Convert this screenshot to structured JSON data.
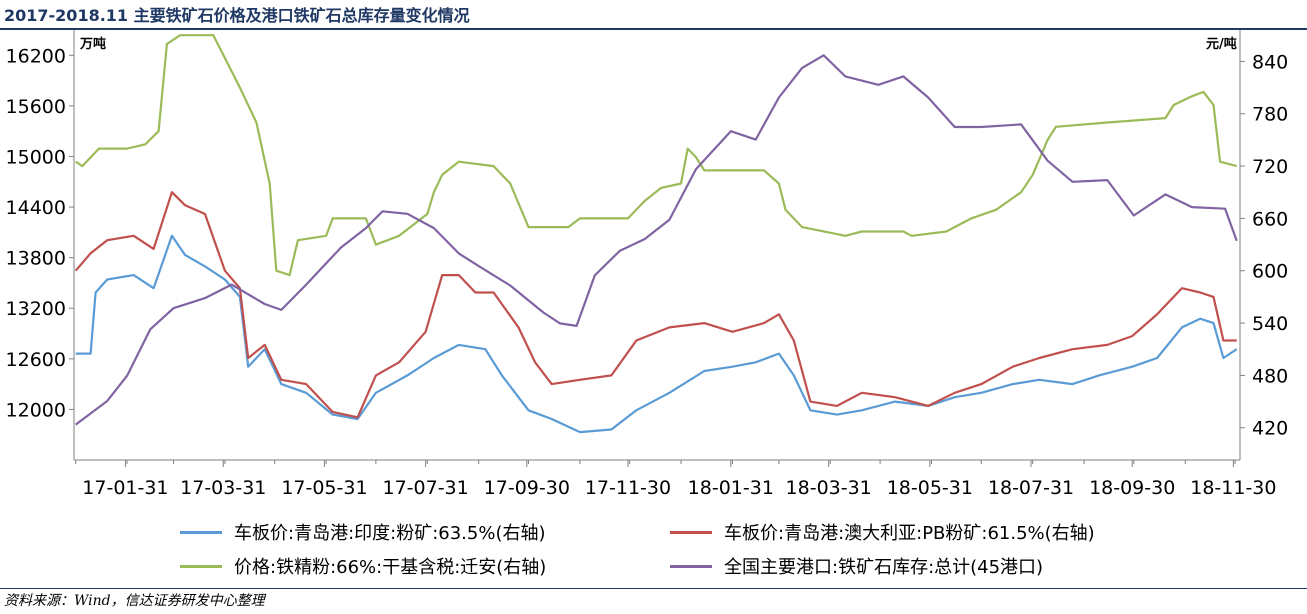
{
  "title": "2017-2018.11 主要铁矿石价格及港口铁矿石总库存量变化情况",
  "source": "资料来源：Wind，信达证券研发中心整理",
  "chart_data": {
    "type": "line",
    "left_axis": {
      "unit": "万吨",
      "ticks": [
        12000,
        12600,
        13200,
        13800,
        14400,
        15000,
        15600,
        16200
      ],
      "range": [
        11400,
        16500
      ]
    },
    "right_axis": {
      "unit": "元/吨",
      "ticks": [
        420,
        480,
        540,
        600,
        660,
        720,
        780,
        840
      ],
      "range": [
        383,
        876
      ]
    },
    "x_ticks": [
      "17-01-31",
      "17-03-31",
      "17-05-31",
      "17-07-31",
      "17-09-30",
      "17-11-30",
      "18-01-31",
      "18-03-31",
      "18-05-31",
      "18-07-31",
      "18-09-30",
      "18-11-30"
    ],
    "x_range": [
      "2016-12-31",
      "2018-12-04"
    ],
    "series": [
      {
        "name": "车板价:青岛港:印度:粉矿:63.5%(右轴)",
        "axis": "right",
        "color": "#5b9bd5",
        "points": [
          [
            "2017-01-01",
            505
          ],
          [
            "2017-01-10",
            505
          ],
          [
            "2017-01-13",
            575
          ],
          [
            "2017-01-20",
            590
          ],
          [
            "2017-02-05",
            595
          ],
          [
            "2017-02-17",
            580
          ],
          [
            "2017-02-28",
            640
          ],
          [
            "2017-03-08",
            618
          ],
          [
            "2017-03-20",
            605
          ],
          [
            "2017-04-01",
            590
          ],
          [
            "2017-04-10",
            570
          ],
          [
            "2017-04-15",
            490
          ],
          [
            "2017-04-25",
            510
          ],
          [
            "2017-05-05",
            470
          ],
          [
            "2017-05-20",
            460
          ],
          [
            "2017-06-05",
            435
          ],
          [
            "2017-06-20",
            430
          ],
          [
            "2017-07-01",
            460
          ],
          [
            "2017-07-20",
            480
          ],
          [
            "2017-08-05",
            500
          ],
          [
            "2017-08-20",
            515
          ],
          [
            "2017-09-05",
            510
          ],
          [
            "2017-09-15",
            480
          ],
          [
            "2017-10-01",
            440
          ],
          [
            "2017-10-15",
            430
          ],
          [
            "2017-11-01",
            415
          ],
          [
            "2017-11-20",
            418
          ],
          [
            "2017-12-05",
            440
          ],
          [
            "2017-12-25",
            460
          ],
          [
            "2018-01-15",
            485
          ],
          [
            "2018-02-01",
            490
          ],
          [
            "2018-02-15",
            495
          ],
          [
            "2018-03-01",
            505
          ],
          [
            "2018-03-10",
            480
          ],
          [
            "2018-03-20",
            440
          ],
          [
            "2018-04-05",
            435
          ],
          [
            "2018-04-20",
            440
          ],
          [
            "2018-05-10",
            450
          ],
          [
            "2018-05-30",
            445
          ],
          [
            "2018-06-15",
            455
          ],
          [
            "2018-07-01",
            460
          ],
          [
            "2018-07-20",
            470
          ],
          [
            "2018-08-05",
            475
          ],
          [
            "2018-08-25",
            470
          ],
          [
            "2018-09-10",
            480
          ],
          [
            "2018-09-30",
            490
          ],
          [
            "2018-10-15",
            500
          ],
          [
            "2018-10-30",
            535
          ],
          [
            "2018-11-10",
            545
          ],
          [
            "2018-11-18",
            540
          ],
          [
            "2018-11-24",
            500
          ],
          [
            "2018-12-02",
            510
          ]
        ]
      },
      {
        "name": "车板价:青岛港:澳大利亚:PB粉矿:61.5%(右轴)",
        "axis": "right",
        "color": "#c0504d",
        "points": [
          [
            "2017-01-01",
            600
          ],
          [
            "2017-01-10",
            620
          ],
          [
            "2017-01-20",
            635
          ],
          [
            "2017-02-05",
            640
          ],
          [
            "2017-02-17",
            625
          ],
          [
            "2017-02-28",
            690
          ],
          [
            "2017-03-08",
            675
          ],
          [
            "2017-03-20",
            665
          ],
          [
            "2017-04-01",
            600
          ],
          [
            "2017-04-10",
            580
          ],
          [
            "2017-04-15",
            500
          ],
          [
            "2017-04-25",
            515
          ],
          [
            "2017-05-05",
            475
          ],
          [
            "2017-05-20",
            470
          ],
          [
            "2017-06-05",
            438
          ],
          [
            "2017-06-20",
            432
          ],
          [
            "2017-07-01",
            480
          ],
          [
            "2017-07-15",
            495
          ],
          [
            "2017-07-31",
            530
          ],
          [
            "2017-08-10",
            595
          ],
          [
            "2017-08-20",
            595
          ],
          [
            "2017-08-30",
            575
          ],
          [
            "2017-09-10",
            575
          ],
          [
            "2017-09-25",
            535
          ],
          [
            "2017-10-05",
            495
          ],
          [
            "2017-10-15",
            470
          ],
          [
            "2017-11-01",
            475
          ],
          [
            "2017-11-20",
            480
          ],
          [
            "2017-12-05",
            520
          ],
          [
            "2017-12-25",
            535
          ],
          [
            "2018-01-15",
            540
          ],
          [
            "2018-02-01",
            530
          ],
          [
            "2018-02-20",
            540
          ],
          [
            "2018-03-01",
            550
          ],
          [
            "2018-03-10",
            520
          ],
          [
            "2018-03-20",
            450
          ],
          [
            "2018-04-05",
            445
          ],
          [
            "2018-04-20",
            460
          ],
          [
            "2018-05-10",
            455
          ],
          [
            "2018-05-30",
            445
          ],
          [
            "2018-06-15",
            460
          ],
          [
            "2018-07-01",
            470
          ],
          [
            "2018-07-20",
            490
          ],
          [
            "2018-08-05",
            500
          ],
          [
            "2018-08-25",
            510
          ],
          [
            "2018-09-15",
            515
          ],
          [
            "2018-09-30",
            525
          ],
          [
            "2018-10-15",
            550
          ],
          [
            "2018-10-30",
            580
          ],
          [
            "2018-11-10",
            575
          ],
          [
            "2018-11-18",
            570
          ],
          [
            "2018-11-24",
            520
          ],
          [
            "2018-12-02",
            520
          ]
        ]
      },
      {
        "name": "价格:铁精粉:66%:干基含税:迁安(右轴)",
        "axis": "right",
        "color": "#9bbb59",
        "points": [
          [
            "2017-01-01",
            725
          ],
          [
            "2017-01-05",
            720
          ],
          [
            "2017-01-15",
            740
          ],
          [
            "2017-02-01",
            740
          ],
          [
            "2017-02-12",
            745
          ],
          [
            "2017-02-20",
            760
          ],
          [
            "2017-02-25",
            860
          ],
          [
            "2017-03-05",
            870
          ],
          [
            "2017-03-25",
            870
          ],
          [
            "2017-04-02",
            840
          ],
          [
            "2017-04-10",
            810
          ],
          [
            "2017-04-20",
            770
          ],
          [
            "2017-04-28",
            700
          ],
          [
            "2017-05-02",
            600
          ],
          [
            "2017-05-10",
            595
          ],
          [
            "2017-05-15",
            635
          ],
          [
            "2017-06-01",
            640
          ],
          [
            "2017-06-05",
            660
          ],
          [
            "2017-06-25",
            660
          ],
          [
            "2017-07-01",
            630
          ],
          [
            "2017-07-15",
            640
          ],
          [
            "2017-08-01",
            665
          ],
          [
            "2017-08-05",
            690
          ],
          [
            "2017-08-10",
            710
          ],
          [
            "2017-08-20",
            725
          ],
          [
            "2017-09-10",
            720
          ],
          [
            "2017-09-20",
            700
          ],
          [
            "2017-10-01",
            650
          ],
          [
            "2017-10-25",
            650
          ],
          [
            "2017-11-01",
            660
          ],
          [
            "2017-11-30",
            660
          ],
          [
            "2017-12-10",
            680
          ],
          [
            "2017-12-20",
            695
          ],
          [
            "2018-01-01",
            700
          ],
          [
            "2018-01-05",
            740
          ],
          [
            "2018-01-10",
            730
          ],
          [
            "2018-01-15",
            715
          ],
          [
            "2018-02-20",
            715
          ],
          [
            "2018-03-01",
            700
          ],
          [
            "2018-03-05",
            670
          ],
          [
            "2018-03-15",
            650
          ],
          [
            "2018-04-10",
            640
          ],
          [
            "2018-04-20",
            645
          ],
          [
            "2018-05-15",
            645
          ],
          [
            "2018-05-20",
            640
          ],
          [
            "2018-06-10",
            645
          ],
          [
            "2018-06-25",
            660
          ],
          [
            "2018-07-10",
            670
          ],
          [
            "2018-07-25",
            690
          ],
          [
            "2018-08-01",
            710
          ],
          [
            "2018-08-10",
            750
          ],
          [
            "2018-08-15",
            765
          ],
          [
            "2018-09-15",
            770
          ],
          [
            "2018-10-20",
            775
          ],
          [
            "2018-10-25",
            790
          ],
          [
            "2018-11-05",
            800
          ],
          [
            "2018-11-12",
            805
          ],
          [
            "2018-11-18",
            790
          ],
          [
            "2018-11-22",
            725
          ],
          [
            "2018-12-02",
            720
          ]
        ]
      },
      {
        "name": "全国主要港口:铁矿石库存:总计(45港口)",
        "axis": "left",
        "color": "#8064a2",
        "points": [
          [
            "2017-01-01",
            11820
          ],
          [
            "2017-01-20",
            12100
          ],
          [
            "2017-02-01",
            12400
          ],
          [
            "2017-02-15",
            12950
          ],
          [
            "2017-03-01",
            13200
          ],
          [
            "2017-03-20",
            13320
          ],
          [
            "2017-04-05",
            13480
          ],
          [
            "2017-04-25",
            13250
          ],
          [
            "2017-05-05",
            13180
          ],
          [
            "2017-05-20",
            13480
          ],
          [
            "2017-06-10",
            13920
          ],
          [
            "2017-06-25",
            14150
          ],
          [
            "2017-07-05",
            14350
          ],
          [
            "2017-07-20",
            14320
          ],
          [
            "2017-08-05",
            14150
          ],
          [
            "2017-08-20",
            13850
          ],
          [
            "2017-09-01",
            13700
          ],
          [
            "2017-09-20",
            13470
          ],
          [
            "2017-10-10",
            13150
          ],
          [
            "2017-10-20",
            13020
          ],
          [
            "2017-10-30",
            12990
          ],
          [
            "2017-11-10",
            13590
          ],
          [
            "2017-11-25",
            13880
          ],
          [
            "2017-12-10",
            14020
          ],
          [
            "2017-12-25",
            14250
          ],
          [
            "2018-01-10",
            14850
          ],
          [
            "2018-01-31",
            15300
          ],
          [
            "2018-02-15",
            15200
          ],
          [
            "2018-03-01",
            15700
          ],
          [
            "2018-03-15",
            16050
          ],
          [
            "2018-03-28",
            16200
          ],
          [
            "2018-04-10",
            15950
          ],
          [
            "2018-04-30",
            15850
          ],
          [
            "2018-05-15",
            15950
          ],
          [
            "2018-05-30",
            15700
          ],
          [
            "2018-06-15",
            15350
          ],
          [
            "2018-07-01",
            15350
          ],
          [
            "2018-07-25",
            15380
          ],
          [
            "2018-08-10",
            14950
          ],
          [
            "2018-08-25",
            14700
          ],
          [
            "2018-09-15",
            14720
          ],
          [
            "2018-10-01",
            14300
          ],
          [
            "2018-10-20",
            14550
          ],
          [
            "2018-11-05",
            14400
          ],
          [
            "2018-11-25",
            14380
          ],
          [
            "2018-12-02",
            14000
          ]
        ]
      }
    ]
  }
}
